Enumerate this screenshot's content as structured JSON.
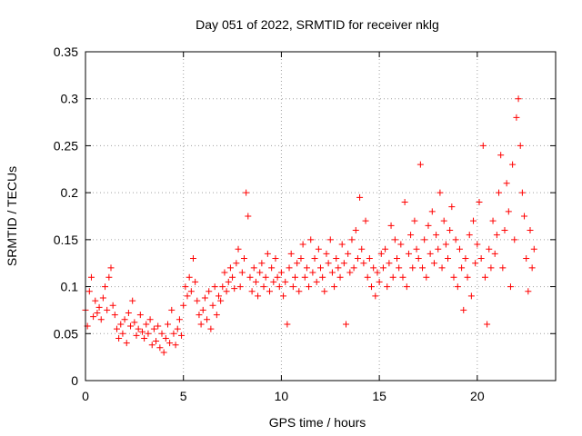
{
  "chart_data": {
    "type": "scatter",
    "title": "Day 051 of 2022, SRMTID for receiver nklg",
    "xlabel": "GPS time / hours",
    "ylabel": "SRMTID / TECUs",
    "xlim": [
      0,
      24
    ],
    "ylim": [
      0,
      0.35
    ],
    "xticks": [
      0,
      5,
      10,
      15,
      20
    ],
    "xtick_labels": [
      "0",
      "5",
      "10",
      "15",
      "20"
    ],
    "yticks": [
      0,
      0.05,
      0.1,
      0.15,
      0.2,
      0.25,
      0.3,
      0.35
    ],
    "ytick_labels": [
      "0",
      "0.05",
      "0.1",
      "0.15",
      "0.2",
      "0.25",
      "0.3",
      "0.35"
    ],
    "grid": true,
    "marker": "plus",
    "color": "#ff0000",
    "series": [
      {
        "name": "SRMTID",
        "points": [
          [
            0.0,
            0.075
          ],
          [
            0.1,
            0.058
          ],
          [
            0.2,
            0.095
          ],
          [
            0.3,
            0.11
          ],
          [
            0.4,
            0.068
          ],
          [
            0.5,
            0.085
          ],
          [
            0.6,
            0.072
          ],
          [
            0.7,
            0.078
          ],
          [
            0.8,
            0.065
          ],
          [
            0.9,
            0.088
          ],
          [
            1.0,
            0.1
          ],
          [
            1.1,
            0.075
          ],
          [
            1.2,
            0.11
          ],
          [
            1.3,
            0.12
          ],
          [
            1.4,
            0.08
          ],
          [
            1.5,
            0.07
          ],
          [
            1.6,
            0.055
          ],
          [
            1.7,
            0.045
          ],
          [
            1.8,
            0.06
          ],
          [
            1.9,
            0.05
          ],
          [
            2.0,
            0.065
          ],
          [
            2.1,
            0.04
          ],
          [
            2.2,
            0.072
          ],
          [
            2.3,
            0.058
          ],
          [
            2.4,
            0.085
          ],
          [
            2.5,
            0.062
          ],
          [
            2.6,
            0.048
          ],
          [
            2.7,
            0.055
          ],
          [
            2.8,
            0.07
          ],
          [
            2.9,
            0.052
          ],
          [
            3.0,
            0.045
          ],
          [
            3.1,
            0.06
          ],
          [
            3.2,
            0.05
          ],
          [
            3.3,
            0.065
          ],
          [
            3.4,
            0.038
          ],
          [
            3.5,
            0.055
          ],
          [
            3.6,
            0.042
          ],
          [
            3.7,
            0.058
          ],
          [
            3.8,
            0.035
          ],
          [
            3.9,
            0.05
          ],
          [
            4.0,
            0.03
          ],
          [
            4.1,
            0.045
          ],
          [
            4.2,
            0.06
          ],
          [
            4.3,
            0.04
          ],
          [
            4.4,
            0.075
          ],
          [
            4.5,
            0.05
          ],
          [
            4.6,
            0.038
          ],
          [
            4.7,
            0.055
          ],
          [
            4.8,
            0.065
          ],
          [
            4.9,
            0.048
          ],
          [
            5.0,
            0.08
          ],
          [
            5.1,
            0.1
          ],
          [
            5.2,
            0.09
          ],
          [
            5.3,
            0.11
          ],
          [
            5.4,
            0.095
          ],
          [
            5.5,
            0.13
          ],
          [
            5.6,
            0.105
          ],
          [
            5.7,
            0.085
          ],
          [
            5.8,
            0.07
          ],
          [
            5.9,
            0.06
          ],
          [
            6.0,
            0.075
          ],
          [
            6.1,
            0.088
          ],
          [
            6.2,
            0.065
          ],
          [
            6.3,
            0.095
          ],
          [
            6.4,
            0.055
          ],
          [
            6.5,
            0.08
          ],
          [
            6.6,
            0.1
          ],
          [
            6.7,
            0.07
          ],
          [
            6.8,
            0.09
          ],
          [
            6.9,
            0.085
          ],
          [
            7.0,
            0.1
          ],
          [
            7.1,
            0.115
          ],
          [
            7.2,
            0.095
          ],
          [
            7.3,
            0.105
          ],
          [
            7.4,
            0.12
          ],
          [
            7.5,
            0.11
          ],
          [
            7.6,
            0.098
          ],
          [
            7.7,
            0.125
          ],
          [
            7.8,
            0.14
          ],
          [
            7.9,
            0.1
          ],
          [
            8.0,
            0.115
          ],
          [
            8.1,
            0.13
          ],
          [
            8.2,
            0.2
          ],
          [
            8.3,
            0.175
          ],
          [
            8.4,
            0.11
          ],
          [
            8.5,
            0.095
          ],
          [
            8.6,
            0.12
          ],
          [
            8.7,
            0.105
          ],
          [
            8.8,
            0.09
          ],
          [
            8.9,
            0.115
          ],
          [
            9.0,
            0.125
          ],
          [
            9.1,
            0.1
          ],
          [
            9.2,
            0.11
          ],
          [
            9.3,
            0.135
          ],
          [
            9.4,
            0.095
          ],
          [
            9.5,
            0.12
          ],
          [
            9.6,
            0.105
          ],
          [
            9.7,
            0.13
          ],
          [
            9.8,
            0.11
          ],
          [
            9.9,
            0.1
          ],
          [
            10.0,
            0.115
          ],
          [
            10.1,
            0.09
          ],
          [
            10.2,
            0.105
          ],
          [
            10.3,
            0.06
          ],
          [
            10.4,
            0.12
          ],
          [
            10.5,
            0.135
          ],
          [
            10.6,
            0.1
          ],
          [
            10.7,
            0.11
          ],
          [
            10.8,
            0.125
          ],
          [
            10.9,
            0.095
          ],
          [
            11.0,
            0.13
          ],
          [
            11.1,
            0.145
          ],
          [
            11.2,
            0.11
          ],
          [
            11.3,
            0.12
          ],
          [
            11.4,
            0.1
          ],
          [
            11.5,
            0.15
          ],
          [
            11.6,
            0.115
          ],
          [
            11.7,
            0.13
          ],
          [
            11.8,
            0.105
          ],
          [
            11.9,
            0.14
          ],
          [
            12.0,
            0.12
          ],
          [
            12.1,
            0.11
          ],
          [
            12.2,
            0.095
          ],
          [
            12.3,
            0.135
          ],
          [
            12.4,
            0.125
          ],
          [
            12.5,
            0.15
          ],
          [
            12.6,
            0.115
          ],
          [
            12.7,
            0.1
          ],
          [
            12.8,
            0.13
          ],
          [
            12.9,
            0.12
          ],
          [
            13.0,
            0.11
          ],
          [
            13.1,
            0.145
          ],
          [
            13.2,
            0.125
          ],
          [
            13.3,
            0.06
          ],
          [
            13.4,
            0.135
          ],
          [
            13.5,
            0.115
          ],
          [
            13.6,
            0.15
          ],
          [
            13.7,
            0.12
          ],
          [
            13.8,
            0.16
          ],
          [
            13.9,
            0.13
          ],
          [
            14.0,
            0.195
          ],
          [
            14.1,
            0.14
          ],
          [
            14.2,
            0.125
          ],
          [
            14.3,
            0.17
          ],
          [
            14.4,
            0.11
          ],
          [
            14.5,
            0.13
          ],
          [
            14.6,
            0.1
          ],
          [
            14.7,
            0.12
          ],
          [
            14.8,
            0.09
          ],
          [
            14.9,
            0.115
          ],
          [
            15.0,
            0.105
          ],
          [
            15.1,
            0.135
          ],
          [
            15.2,
            0.12
          ],
          [
            15.3,
            0.14
          ],
          [
            15.4,
            0.1
          ],
          [
            15.5,
            0.125
          ],
          [
            15.6,
            0.165
          ],
          [
            15.7,
            0.11
          ],
          [
            15.8,
            0.15
          ],
          [
            15.9,
            0.13
          ],
          [
            16.0,
            0.12
          ],
          [
            16.1,
            0.145
          ],
          [
            16.2,
            0.11
          ],
          [
            16.3,
            0.19
          ],
          [
            16.4,
            0.1
          ],
          [
            16.5,
            0.135
          ],
          [
            16.6,
            0.155
          ],
          [
            16.7,
            0.12
          ],
          [
            16.8,
            0.17
          ],
          [
            16.9,
            0.14
          ],
          [
            17.0,
            0.13
          ],
          [
            17.1,
            0.23
          ],
          [
            17.2,
            0.12
          ],
          [
            17.3,
            0.15
          ],
          [
            17.4,
            0.11
          ],
          [
            17.5,
            0.165
          ],
          [
            17.6,
            0.135
          ],
          [
            17.7,
            0.18
          ],
          [
            17.8,
            0.125
          ],
          [
            17.9,
            0.155
          ],
          [
            18.0,
            0.14
          ],
          [
            18.1,
            0.2
          ],
          [
            18.2,
            0.12
          ],
          [
            18.3,
            0.17
          ],
          [
            18.4,
            0.145
          ],
          [
            18.5,
            0.13
          ],
          [
            18.6,
            0.16
          ],
          [
            18.7,
            0.185
          ],
          [
            18.8,
            0.11
          ],
          [
            18.9,
            0.15
          ],
          [
            19.0,
            0.1
          ],
          [
            19.1,
            0.14
          ],
          [
            19.2,
            0.12
          ],
          [
            19.3,
            0.075
          ],
          [
            19.4,
            0.13
          ],
          [
            19.5,
            0.11
          ],
          [
            19.6,
            0.155
          ],
          [
            19.7,
            0.09
          ],
          [
            19.8,
            0.17
          ],
          [
            19.9,
            0.125
          ],
          [
            20.0,
            0.145
          ],
          [
            20.1,
            0.19
          ],
          [
            20.2,
            0.13
          ],
          [
            20.3,
            0.25
          ],
          [
            20.4,
            0.11
          ],
          [
            20.5,
            0.06
          ],
          [
            20.6,
            0.14
          ],
          [
            20.7,
            0.12
          ],
          [
            20.8,
            0.17
          ],
          [
            20.9,
            0.135
          ],
          [
            21.0,
            0.155
          ],
          [
            21.1,
            0.2
          ],
          [
            21.2,
            0.24
          ],
          [
            21.3,
            0.12
          ],
          [
            21.4,
            0.16
          ],
          [
            21.5,
            0.21
          ],
          [
            21.6,
            0.18
          ],
          [
            21.7,
            0.1
          ],
          [
            21.8,
            0.23
          ],
          [
            21.9,
            0.15
          ],
          [
            22.0,
            0.28
          ],
          [
            22.1,
            0.3
          ],
          [
            22.2,
            0.25
          ],
          [
            22.3,
            0.2
          ],
          [
            22.4,
            0.175
          ],
          [
            22.5,
            0.13
          ],
          [
            22.6,
            0.095
          ],
          [
            22.7,
            0.16
          ],
          [
            22.8,
            0.12
          ],
          [
            22.9,
            0.14
          ]
        ]
      }
    ]
  }
}
